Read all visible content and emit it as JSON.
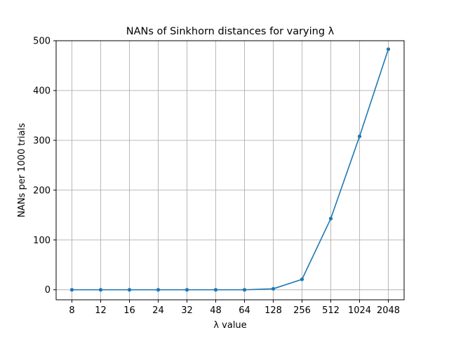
{
  "chart_data": {
    "type": "line",
    "title": "NANs of Sinkhorn distances for varying λ",
    "xlabel": "λ value",
    "ylabel": "NANs per 1000 trials",
    "categories": [
      "8",
      "12",
      "16",
      "24",
      "32",
      "48",
      "64",
      "128",
      "256",
      "512",
      "1024",
      "2048"
    ],
    "series": [
      {
        "values": [
          0,
          0,
          0,
          0,
          0,
          0,
          0,
          2,
          21,
          143,
          308,
          483
        ]
      }
    ],
    "y_ticks": [
      0,
      100,
      200,
      300,
      400,
      500
    ],
    "ylim": [
      -20.1,
      500
    ],
    "grid": true,
    "line_color": "#1f77b4"
  }
}
